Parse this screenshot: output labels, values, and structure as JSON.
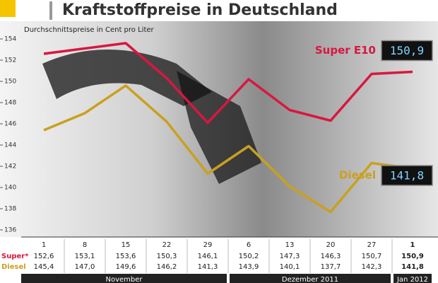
{
  "chart_data": {
    "type": "line",
    "title": "Kraftstoffpreise in Deutschland",
    "subtitle": "Durchschnittspreise in Cent pro Liter",
    "categories": [
      "1",
      "8",
      "15",
      "22",
      "29",
      "6",
      "13",
      "20",
      "27",
      "1"
    ],
    "month_groups": [
      "November",
      "Dezember 2011",
      "Jan 2012"
    ],
    "ylim": [
      135,
      155
    ],
    "yticks": [
      136,
      138,
      140,
      142,
      144,
      146,
      148,
      150,
      152,
      154
    ],
    "series": [
      {
        "name": "Super E10",
        "table_label": "Super*",
        "color": "#d8173f",
        "values": [
          152.6,
          153.1,
          153.6,
          150.3,
          146.1,
          150.2,
          147.3,
          146.3,
          150.7,
          150.9
        ],
        "value_labels": [
          "152,6",
          "153,1",
          "153,6",
          "150,3",
          "146,1",
          "150,2",
          "147,3",
          "146,3",
          "150,7",
          "150,9"
        ]
      },
      {
        "name": "Diesel",
        "table_label": "Diesel",
        "color": "#c9a020",
        "values": [
          145.4,
          147.0,
          149.6,
          146.2,
          141.3,
          143.9,
          140.1,
          137.7,
          142.3,
          141.8
        ],
        "value_labels": [
          "145,4",
          "147,0",
          "149,6",
          "146,2",
          "141,3",
          "143,9",
          "140,1",
          "137,7",
          "142,3",
          "141,8"
        ]
      }
    ]
  }
}
